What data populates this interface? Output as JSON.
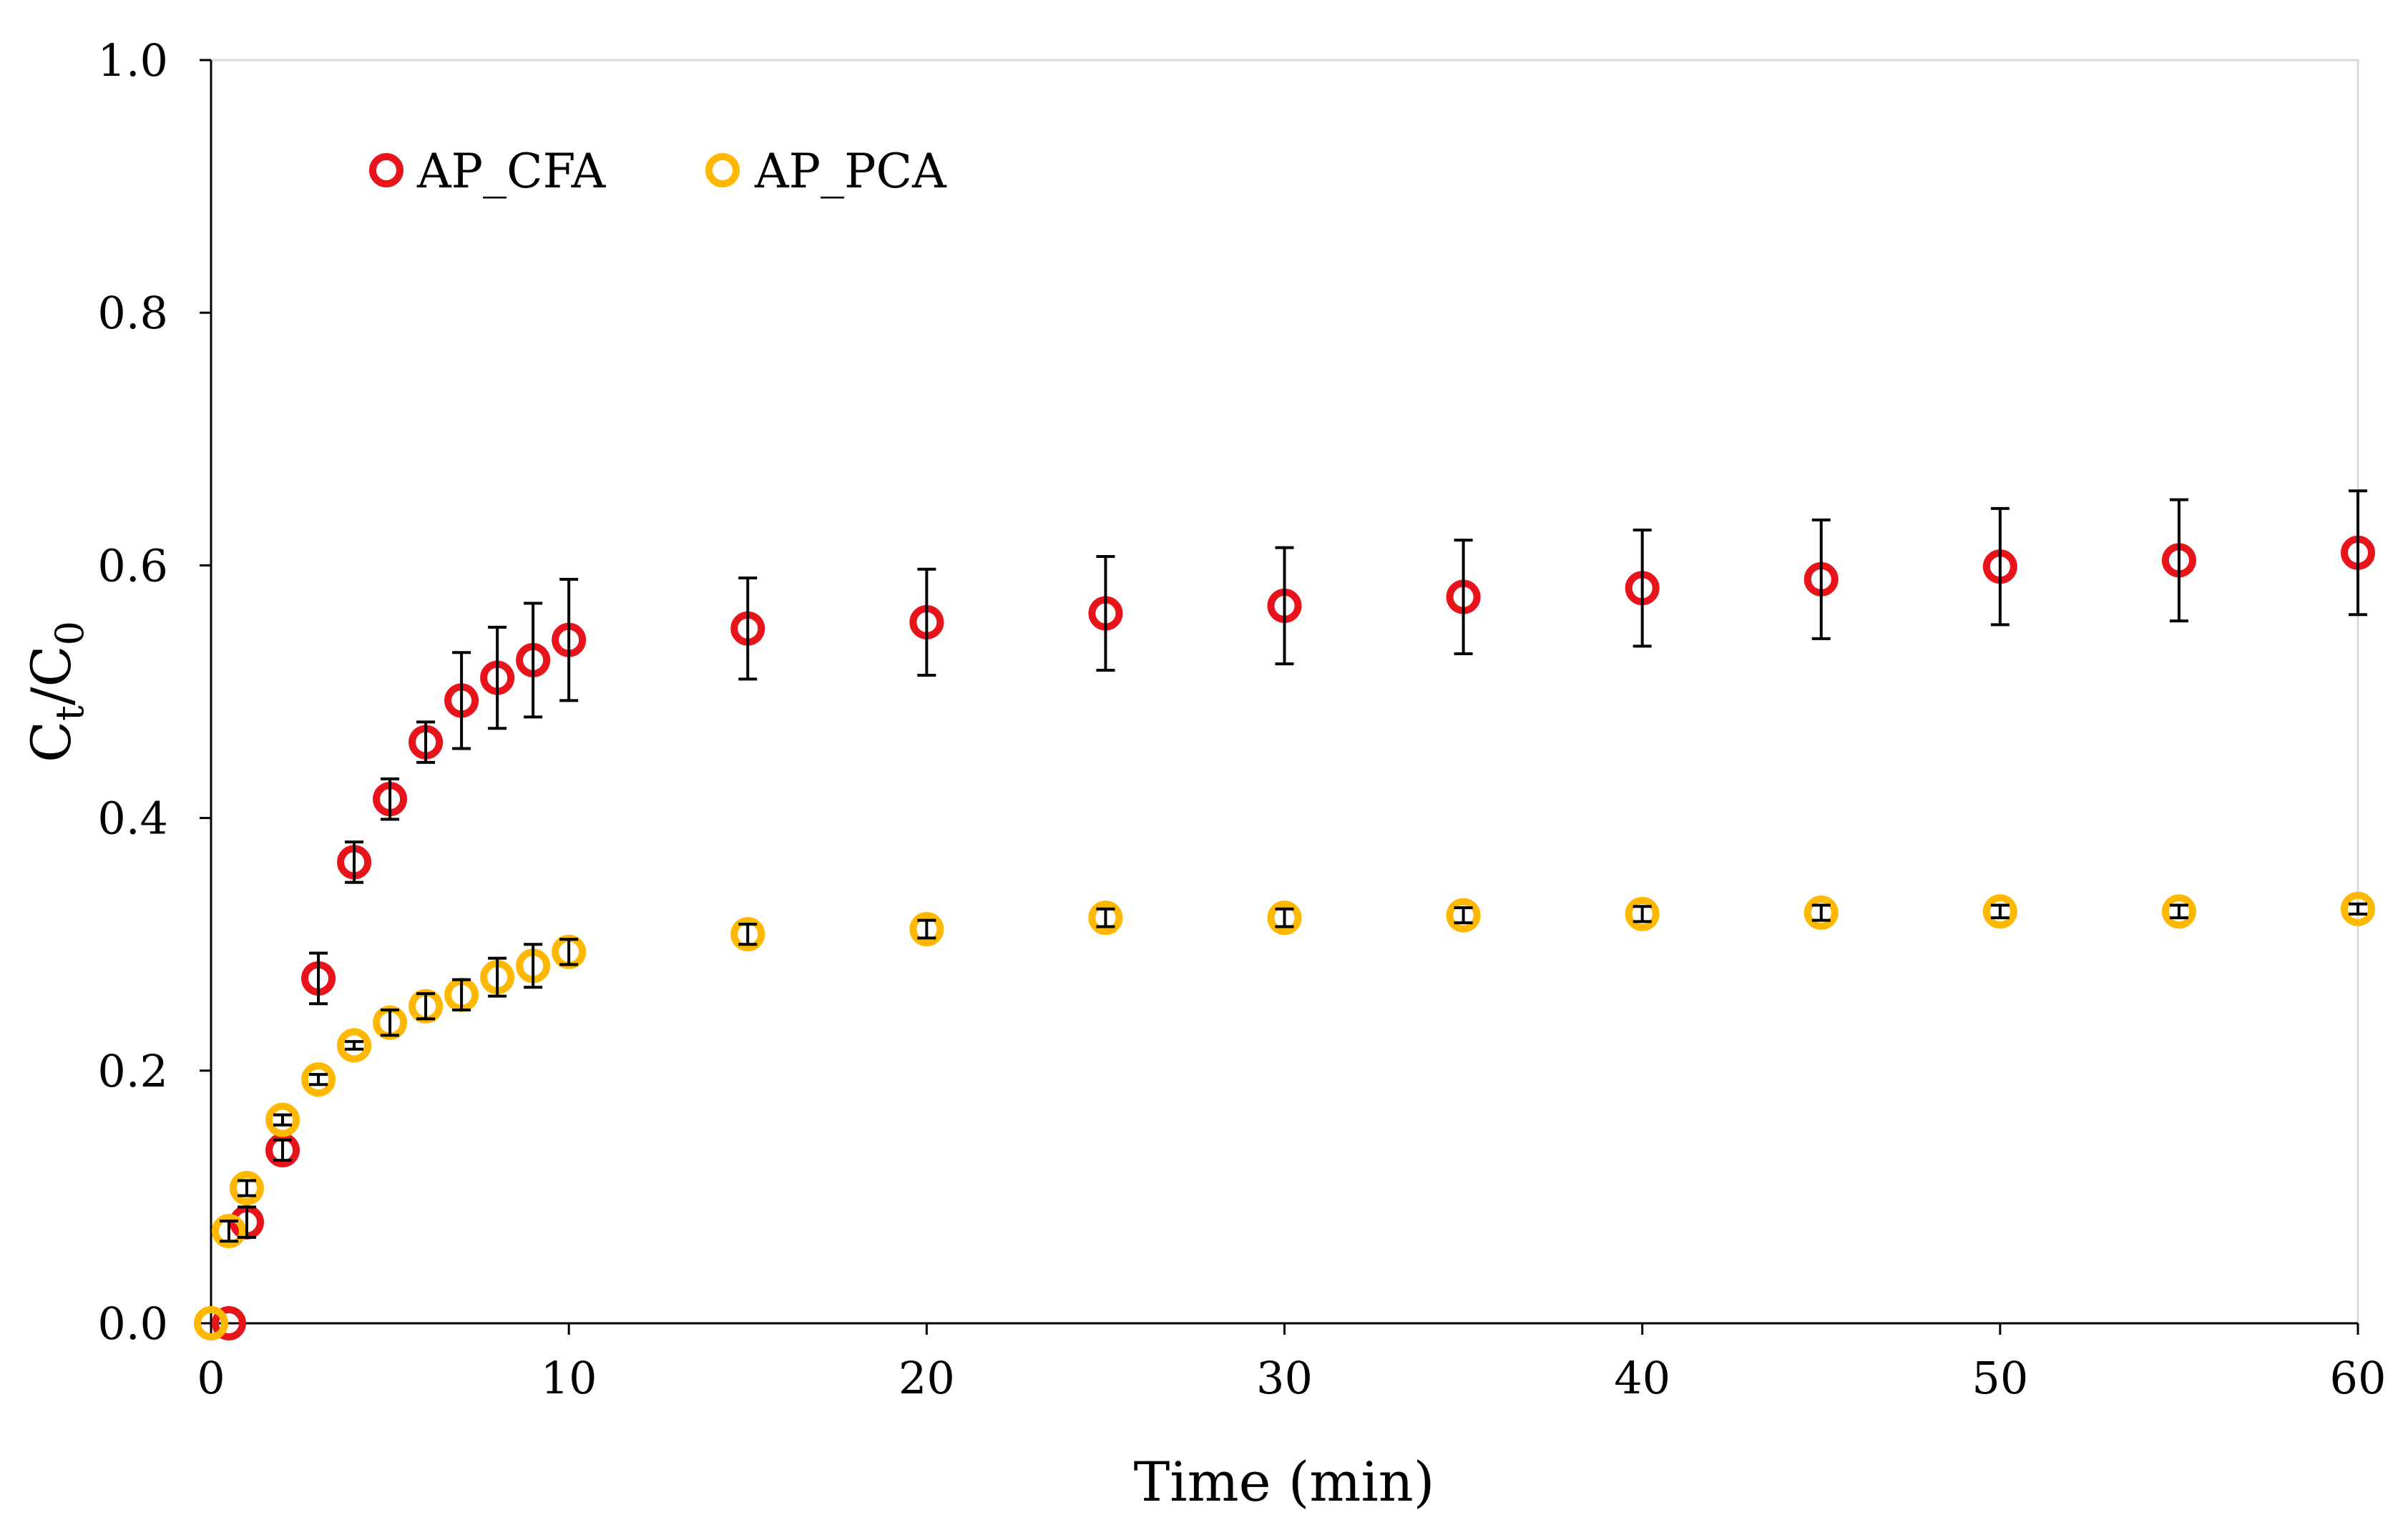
{
  "chart_data": {
    "type": "scatter",
    "title": "",
    "xlabel": "Time (min)",
    "ylabel": {
      "base": "C",
      "num_sub": "t",
      "sep": "/C",
      "den_sub": "0"
    },
    "xlim": [
      0,
      60
    ],
    "ylim": [
      0,
      1.0
    ],
    "x_ticks": [
      0,
      10,
      20,
      30,
      40,
      50,
      60
    ],
    "x_tick_labels": [
      "0",
      "10",
      "20",
      "30",
      "40",
      "50",
      "60"
    ],
    "y_ticks": [
      0,
      0.2,
      0.4,
      0.6,
      0.8,
      1.0
    ],
    "y_tick_labels": [
      "0.0",
      "0.2",
      "0.4",
      "0.6",
      "0.8",
      "1.0"
    ],
    "grid": false,
    "legend_position": "top-left",
    "series": [
      {
        "name": "AP_CFA",
        "color": "#e8141b",
        "marker": "open-circle",
        "x": [
          0.5,
          1,
          2,
          3,
          4,
          5,
          6,
          7,
          8,
          9,
          10,
          15,
          20,
          25,
          30,
          35,
          40,
          45,
          50,
          55,
          60
        ],
        "y": [
          0.0,
          0.08,
          0.137,
          0.273,
          0.365,
          0.415,
          0.46,
          0.493,
          0.511,
          0.525,
          0.541,
          0.55,
          0.555,
          0.562,
          0.568,
          0.575,
          0.582,
          0.589,
          0.599,
          0.604,
          0.61
        ],
        "err": [
          0.0,
          0.012,
          0.008,
          0.02,
          0.016,
          0.016,
          0.016,
          0.038,
          0.04,
          0.045,
          0.048,
          0.04,
          0.042,
          0.045,
          0.046,
          0.045,
          0.046,
          0.047,
          0.046,
          0.048,
          0.049
        ]
      },
      {
        "name": "AP_PCA",
        "color": "#ffb800",
        "marker": "open-circle",
        "x": [
          0,
          0.5,
          1,
          2,
          3,
          4,
          5,
          6,
          7,
          8,
          9,
          10,
          15,
          20,
          25,
          30,
          35,
          40,
          45,
          50,
          55,
          60
        ],
        "y": [
          0.0,
          0.073,
          0.107,
          0.161,
          0.193,
          0.22,
          0.238,
          0.251,
          0.26,
          0.274,
          0.283,
          0.294,
          0.308,
          0.312,
          0.321,
          0.321,
          0.323,
          0.324,
          0.325,
          0.326,
          0.326,
          0.328
        ],
        "err": [
          0.0,
          0.008,
          0.006,
          0.004,
          0.004,
          0.003,
          0.01,
          0.01,
          0.012,
          0.015,
          0.017,
          0.01,
          0.008,
          0.007,
          0.007,
          0.007,
          0.006,
          0.006,
          0.006,
          0.005,
          0.005,
          0.004
        ]
      }
    ]
  }
}
